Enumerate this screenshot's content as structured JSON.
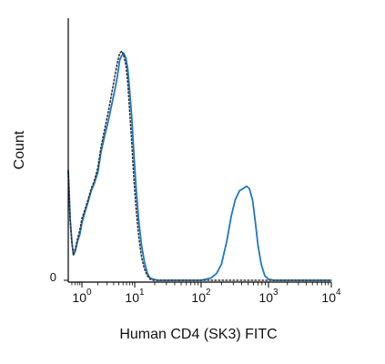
{
  "chart_data": {
    "type": "line",
    "title": "",
    "xlabel": "Human CD4 (SK3) FITC",
    "ylabel": "Count",
    "x_scale": "biexponential",
    "xlim": [
      0.5,
      10000
    ],
    "ylim": [
      0,
      100
    ],
    "y_ticks": [
      {
        "value": 0,
        "label": "0"
      }
    ],
    "x_ticks": [
      {
        "value": 1,
        "base": "10",
        "exp": "0"
      },
      {
        "value": 10,
        "base": "10",
        "exp": "1"
      },
      {
        "value": 100,
        "base": "10",
        "exp": "2"
      },
      {
        "value": 1000,
        "base": "10",
        "exp": "3"
      },
      {
        "value": 10000,
        "base": "10",
        "exp": "4"
      }
    ],
    "grid": false,
    "legend": "none",
    "series": [
      {
        "style": "solid",
        "color": "#1f77c8",
        "x": [
          0.5,
          0.52,
          0.55,
          0.6,
          0.65,
          0.72,
          0.8,
          0.9,
          1.0,
          1.15,
          1.3,
          1.5,
          1.7,
          2.0,
          2.3,
          2.7,
          3.2,
          3.7,
          4.2,
          4.7,
          5.2,
          5.7,
          6.2,
          6.8,
          7.4,
          8.0,
          8.8,
          9.6,
          10.5,
          11.5,
          12.7,
          14.0,
          15.5,
          17.0,
          19.0,
          22.0,
          30.0,
          50.0,
          100.0,
          140.0,
          170.0,
          200.0,
          240.0,
          280.0,
          320.0,
          370.0,
          420.0,
          470.0,
          520.0,
          580.0,
          640.0,
          700.0,
          780.0,
          880.0,
          1000.0,
          1200.0,
          1500.0,
          2000.0,
          3000.0,
          5000.0,
          10000.0
        ],
        "y": [
          48,
          40,
          27,
          17,
          11,
          13,
          17,
          20,
          25,
          30,
          34,
          39,
          42,
          47,
          56,
          63,
          70,
          77,
          83,
          89,
          96,
          98,
          99,
          97,
          92,
          83,
          71,
          56,
          40,
          26,
          15,
          8,
          3,
          1,
          0.5,
          0,
          0,
          0,
          0,
          1,
          3,
          7,
          17,
          28,
          35,
          39,
          40,
          41,
          40,
          35,
          25,
          15,
          7,
          2,
          0.5,
          0,
          0,
          0,
          0,
          0,
          0
        ]
      },
      {
        "style": "dotted",
        "color": "#333333",
        "x": [
          0.5,
          0.52,
          0.55,
          0.6,
          0.65,
          0.72,
          0.8,
          0.9,
          1.0,
          1.15,
          1.3,
          1.5,
          1.7,
          2.0,
          2.3,
          2.7,
          3.2,
          3.7,
          4.2,
          4.7,
          5.2,
          5.7,
          6.2,
          6.8,
          7.4,
          8.0,
          8.8,
          9.6,
          10.5,
          11.5,
          12.7,
          14.0,
          15.5,
          17.0,
          19.0,
          22.0,
          30.0,
          100.0,
          1000.0,
          10000.0
        ],
        "y": [
          47,
          39,
          26,
          16,
          11,
          14,
          18,
          22,
          27,
          31,
          35,
          40,
          43,
          49,
          58,
          66,
          74,
          82,
          89,
          95,
          99,
          100,
          98,
          94,
          86,
          74,
          60,
          45,
          31,
          19,
          10,
          5,
          2,
          0.5,
          0,
          0,
          0,
          0,
          0,
          0
        ]
      }
    ]
  }
}
